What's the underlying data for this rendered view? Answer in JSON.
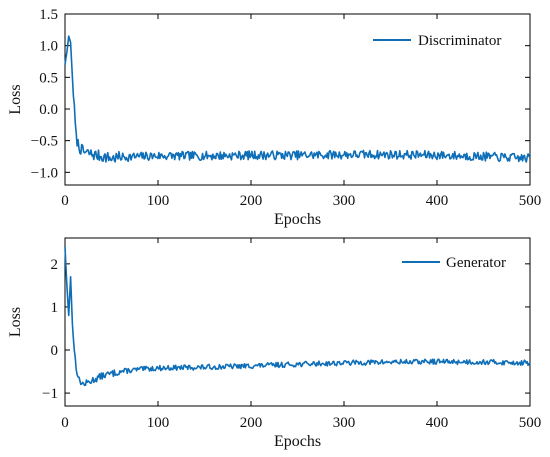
{
  "chart_data": [
    {
      "type": "line",
      "xlabel": "Epochs",
      "ylabel": "Loss",
      "xlim": [
        0,
        500
      ],
      "ylim": [
        -1.2,
        1.5
      ],
      "xticks": [
        "0",
        "100",
        "200",
        "300",
        "400",
        "500"
      ],
      "yticks": [
        "−1.0",
        "−0.5",
        "0.0",
        "0.5",
        "1.0",
        "1.5"
      ],
      "legend_position": "top-right",
      "grid": false,
      "series": [
        {
          "name": "Discriminator",
          "color": "#0e6eb8",
          "x": [
            0,
            2,
            4,
            6,
            8,
            10,
            12,
            15,
            20,
            30,
            40,
            50,
            60,
            80,
            100,
            150,
            200,
            250,
            300,
            350,
            400,
            450,
            500
          ],
          "y": [
            0.7,
            0.9,
            1.15,
            1.05,
            0.5,
            0.0,
            -0.45,
            -0.6,
            -0.68,
            -0.72,
            -0.75,
            -0.78,
            -0.76,
            -0.75,
            -0.74,
            -0.74,
            -0.73,
            -0.73,
            -0.72,
            -0.72,
            -0.73,
            -0.75,
            -0.78
          ]
        }
      ]
    },
    {
      "type": "line",
      "xlabel": "Epochs",
      "ylabel": "Loss",
      "xlim": [
        0,
        500
      ],
      "ylim": [
        -1.3,
        2.6
      ],
      "xticks": [
        "0",
        "100",
        "200",
        "300",
        "400",
        "500"
      ],
      "yticks": [
        "−1",
        "0",
        "1",
        "2"
      ],
      "legend_position": "top-right",
      "grid": false,
      "series": [
        {
          "name": "Generator",
          "color": "#0e6eb8",
          "x": [
            0,
            2,
            4,
            6,
            8,
            10,
            12,
            15,
            20,
            25,
            30,
            40,
            50,
            60,
            80,
            100,
            150,
            200,
            250,
            300,
            350,
            400,
            450,
            500
          ],
          "y": [
            2.4,
            1.5,
            0.8,
            1.7,
            0.6,
            0.0,
            -0.4,
            -0.7,
            -0.8,
            -0.75,
            -0.7,
            -0.6,
            -0.55,
            -0.5,
            -0.45,
            -0.42,
            -0.4,
            -0.37,
            -0.33,
            -0.3,
            -0.28,
            -0.27,
            -0.28,
            -0.3
          ]
        }
      ]
    }
  ]
}
